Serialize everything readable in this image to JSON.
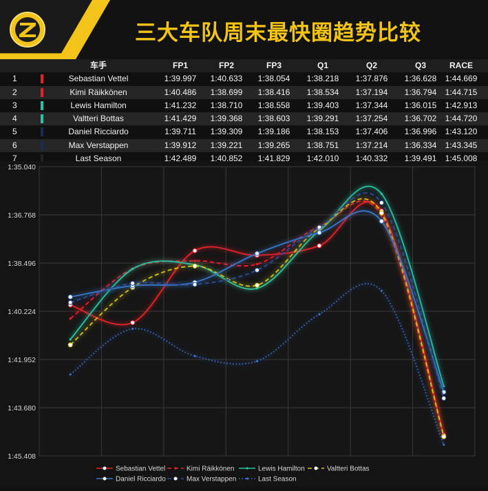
{
  "title": "三大车队周末最快圈趋势比较",
  "table": {
    "headers": [
      "车手",
      "FP1",
      "FP2",
      "FP3",
      "Q1",
      "Q2",
      "Q3",
      "RACE"
    ],
    "rows": [
      {
        "rank": "1",
        "driver": "Sebastian Vettel",
        "color": "#e8202a",
        "times": [
          "1:39.997",
          "1:40.633",
          "1:38.054",
          "1:38.218",
          "1:37.876",
          "1:36.628",
          "1:44.669"
        ]
      },
      {
        "rank": "2",
        "driver": "Kimi Räikkönen",
        "color": "#e8202a",
        "times": [
          "1:40.486",
          "1:38.699",
          "1:38.416",
          "1:38.534",
          "1:37.194",
          "1:36.794",
          "1:44.715"
        ]
      },
      {
        "rank": "3",
        "driver": "Lewis Hamilton",
        "color": "#27c4a3",
        "times": [
          "1:41.232",
          "1:38.710",
          "1:38.558",
          "1:39.403",
          "1:37.344",
          "1:36.015",
          "1:42.913"
        ]
      },
      {
        "rank": "4",
        "driver": "Valtteri Bottas",
        "color": "#27c4a3",
        "times": [
          "1:41.429",
          "1:39.368",
          "1:38.603",
          "1:39.291",
          "1:37.254",
          "1:36.702",
          "1:44.720"
        ]
      },
      {
        "rank": "5",
        "driver": "Daniel Ricciardo",
        "color": "#1c2a5a",
        "times": [
          "1:39.711",
          "1:39.309",
          "1:39.186",
          "1:38.153",
          "1:37.406",
          "1:36.996",
          "1:43.120"
        ]
      },
      {
        "rank": "6",
        "driver": "Max Verstappen",
        "color": "#1c2a5a",
        "times": [
          "1:39.912",
          "1:39.221",
          "1:39.265",
          "1:38.751",
          "1:37.214",
          "1:36.334",
          "1:43.345"
        ]
      },
      {
        "rank": "7",
        "driver": "Last Season",
        "color": "#222222",
        "times": [
          "1:42.489",
          "1:40.852",
          "1:41.829",
          "1:42.010",
          "1:40.332",
          "1:39.491",
          "1:45.008"
        ]
      }
    ]
  },
  "chart_data": {
    "type": "line",
    "x": [
      "FP1",
      "FP2",
      "FP3",
      "Q1",
      "Q2",
      "Q3",
      "RACE"
    ],
    "y_tick_labels": [
      "1:35.040",
      "1:36.768",
      "1:38.496",
      "1:40.224",
      "1:41.952",
      "1:43.680",
      "1:45.408"
    ],
    "ylim": [
      95.04,
      105.408
    ],
    "y_inverted": true,
    "grid": true,
    "legend_position": "bottom",
    "series": [
      {
        "name": "Sebastian Vettel",
        "color": "#e8202a",
        "dash": "solid",
        "marker": "circle",
        "values": [
          99.997,
          100.633,
          98.054,
          98.218,
          97.876,
          96.628,
          104.669
        ]
      },
      {
        "name": "Kimi Räikkönen",
        "color": "#e8202a",
        "dash": "dashed",
        "marker": "none",
        "values": [
          100.486,
          98.699,
          98.416,
          98.534,
          97.194,
          96.794,
          104.715
        ]
      },
      {
        "name": "Lewis Hamilton",
        "color": "#27c4a3",
        "dash": "solid",
        "marker": "none",
        "values": [
          101.232,
          98.71,
          98.558,
          99.403,
          97.344,
          96.015,
          102.913
        ]
      },
      {
        "name": "Valtteri Bottas",
        "color": "#d9c21a",
        "dash": "dashed",
        "marker": "circle",
        "values": [
          101.429,
          99.368,
          98.603,
          99.291,
          97.254,
          96.702,
          104.72
        ]
      },
      {
        "name": "Daniel Ricciardo",
        "color": "#3a78c8",
        "dash": "solid",
        "marker": "circle",
        "values": [
          99.711,
          99.309,
          99.186,
          98.153,
          97.406,
          96.996,
          103.12
        ]
      },
      {
        "name": "Max Verstappen",
        "color": "#2b4f9a",
        "dash": "dashed",
        "marker": "circle",
        "values": [
          99.912,
          99.221,
          99.265,
          98.751,
          97.214,
          96.334,
          103.345
        ]
      },
      {
        "name": "Last Season",
        "color": "#3a6fd0",
        "dash": "dotted",
        "marker": "none",
        "values": [
          102.489,
          100.852,
          101.829,
          102.01,
          100.332,
          99.491,
          105.008
        ]
      }
    ]
  }
}
